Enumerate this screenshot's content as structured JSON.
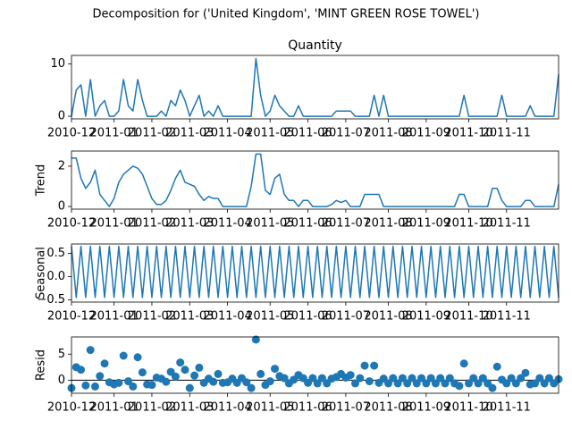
{
  "title": "Decomposition for ('United Kingdom', 'MINT GREEN ROSE TOWEL')",
  "chart_data": [
    {
      "type": "line",
      "title": "Quantity",
      "color": "#1f77b4",
      "categories": [
        "2010-12",
        null,
        null,
        null,
        null,
        null,
        null,
        null,
        null,
        "2011-01",
        null,
        null,
        null,
        null,
        null,
        null,
        null,
        "2011-02",
        null,
        null,
        null,
        null,
        null,
        null,
        null,
        "2011-03",
        null,
        null,
        null,
        null,
        null,
        null,
        null,
        "2011-04",
        null,
        null,
        null,
        null,
        null,
        null,
        null,
        null,
        "2011-05",
        null,
        null,
        null,
        null,
        null,
        null,
        null,
        "2011-06",
        null,
        null,
        null,
        null,
        null,
        null,
        null,
        "2011-07",
        null,
        null,
        null,
        null,
        null,
        null,
        null,
        null,
        "2011-08",
        null,
        null,
        null,
        null,
        null,
        null,
        null,
        "2011-09",
        null,
        null,
        null,
        null,
        null,
        null,
        null,
        null,
        "2011-10",
        null,
        null,
        null,
        null,
        null,
        null,
        null,
        "2011-11",
        null,
        null,
        null,
        null,
        null,
        null,
        null,
        null,
        null,
        null,
        null
      ],
      "values": [
        0,
        5,
        6,
        0,
        7,
        0,
        2,
        3,
        0,
        0,
        1,
        7,
        2,
        1,
        7,
        3,
        0,
        0,
        0,
        1,
        0,
        3,
        2,
        5,
        3,
        0,
        2,
        4,
        0,
        1,
        0,
        2,
        0,
        0,
        0,
        0,
        0,
        0,
        0,
        11,
        4,
        0,
        1,
        4,
        2,
        1,
        0,
        0,
        2,
        0,
        0,
        0,
        0,
        0,
        0,
        0,
        1,
        1,
        1,
        1,
        0,
        0,
        0,
        0,
        4,
        0,
        4,
        0,
        0,
        0,
        0,
        0,
        0,
        0,
        0,
        0,
        0,
        0,
        0,
        0,
        0,
        0,
        0,
        4,
        0,
        0,
        0,
        0,
        0,
        0,
        0,
        4,
        0,
        0,
        0,
        0,
        0,
        2,
        0,
        0,
        0,
        0,
        0,
        8
      ],
      "ylim": [
        -0.5,
        11.6
      ],
      "yticks": [
        0,
        10
      ]
    },
    {
      "type": "line",
      "ylabel": "Trend",
      "color": "#1f77b4",
      "categories": [
        "2010-12",
        null,
        null,
        null,
        null,
        null,
        null,
        null,
        null,
        "2011-01",
        null,
        null,
        null,
        null,
        null,
        null,
        null,
        "2011-02",
        null,
        null,
        null,
        null,
        null,
        null,
        null,
        "2011-03",
        null,
        null,
        null,
        null,
        null,
        null,
        null,
        "2011-04",
        null,
        null,
        null,
        null,
        null,
        null,
        null,
        null,
        "2011-05",
        null,
        null,
        null,
        null,
        null,
        null,
        null,
        "2011-06",
        null,
        null,
        null,
        null,
        null,
        null,
        null,
        "2011-07",
        null,
        null,
        null,
        null,
        null,
        null,
        null,
        null,
        "2011-08",
        null,
        null,
        null,
        null,
        null,
        null,
        null,
        "2011-09",
        null,
        null,
        null,
        null,
        null,
        null,
        null,
        null,
        "2011-10",
        null,
        null,
        null,
        null,
        null,
        null,
        null,
        "2011-11",
        null,
        null,
        null,
        null,
        null,
        null,
        null,
        null,
        null,
        null,
        null
      ],
      "values": [
        2.4,
        2.4,
        1.4,
        0.9,
        1.2,
        1.8,
        0.6,
        0.3,
        0.0,
        0.4,
        1.2,
        1.6,
        1.8,
        2.0,
        1.9,
        1.6,
        1.0,
        0.4,
        0.1,
        0.1,
        0.3,
        0.8,
        1.4,
        1.8,
        1.2,
        1.1,
        1.0,
        0.6,
        0.3,
        0.5,
        0.4,
        0.4,
        0.0,
        0.0,
        0.0,
        0.0,
        0.0,
        0.0,
        1.0,
        2.6,
        2.6,
        0.8,
        0.6,
        1.4,
        1.6,
        0.6,
        0.3,
        0.3,
        0.0,
        0.3,
        0.3,
        0.0,
        0.0,
        0.0,
        0.0,
        0.1,
        0.3,
        0.2,
        0.3,
        0.0,
        0.0,
        0.0,
        0.6,
        0.6,
        0.6,
        0.6,
        0.0,
        0,
        0,
        0,
        0,
        0,
        0,
        0,
        0,
        0,
        0,
        0,
        0,
        0,
        0,
        0,
        0.6,
        0.6,
        0,
        0,
        0,
        0,
        0,
        0.9,
        0.9,
        0.3,
        0,
        0,
        0,
        0,
        0.3,
        0.3,
        0,
        0,
        0,
        0,
        0,
        1.1
      ],
      "ylim": [
        -0.13,
        2.75
      ],
      "yticks": [
        0,
        2
      ]
    },
    {
      "type": "line",
      "ylabel": "Seasonal",
      "color": "#1f77b4",
      "categories": [
        "2010-12",
        null,
        null,
        null,
        null,
        null,
        null,
        null,
        null,
        "2011-01",
        null,
        null,
        null,
        null,
        null,
        null,
        null,
        "2011-02",
        null,
        null,
        null,
        null,
        null,
        null,
        null,
        "2011-03",
        null,
        null,
        null,
        null,
        null,
        null,
        null,
        "2011-04",
        null,
        null,
        null,
        null,
        null,
        null,
        null,
        null,
        "2011-05",
        null,
        null,
        null,
        null,
        null,
        null,
        null,
        "2011-06",
        null,
        null,
        null,
        null,
        null,
        null,
        null,
        "2011-07",
        null,
        null,
        null,
        null,
        null,
        null,
        null,
        null,
        "2011-08",
        null,
        null,
        null,
        null,
        null,
        null,
        null,
        "2011-09",
        null,
        null,
        null,
        null,
        null,
        null,
        null,
        null,
        "2011-10",
        null,
        null,
        null,
        null,
        null,
        null,
        null,
        "2011-11",
        null,
        null,
        null,
        null,
        null,
        null,
        null,
        null,
        null,
        null,
        null
      ],
      "values": [
        0.65,
        -0.45,
        0.65,
        -0.45,
        0.65,
        -0.45,
        0.65,
        -0.45,
        0.65,
        -0.45,
        0.65,
        -0.45,
        0.65,
        -0.45,
        0.65,
        -0.45,
        0.65,
        -0.45,
        0.65,
        -0.45,
        0.65,
        -0.45,
        0.65,
        -0.45,
        0.65,
        -0.45,
        0.65,
        -0.45,
        0.65,
        -0.45,
        0.65,
        -0.45,
        0.65,
        -0.45,
        0.65,
        -0.45,
        0.65,
        -0.45,
        0.65,
        -0.45,
        0.65,
        -0.45,
        0.65,
        -0.45,
        0.65,
        -0.45,
        0.65,
        -0.45,
        0.65,
        -0.45,
        0.65,
        -0.45,
        0.65,
        -0.45,
        0.65,
        -0.45,
        0.65,
        -0.45,
        0.65,
        -0.45,
        0.65,
        -0.45,
        0.65,
        -0.45,
        0.65,
        -0.45,
        0.65,
        -0.45,
        0.65,
        -0.45,
        0.65,
        -0.45,
        0.65,
        -0.45,
        0.65,
        -0.45,
        0.65,
        -0.45,
        0.65,
        -0.45,
        0.65,
        -0.45,
        0.65,
        -0.45,
        0.65,
        -0.45,
        0.65,
        -0.45,
        0.65,
        -0.45,
        0.65,
        -0.45,
        0.65,
        -0.45,
        0.65,
        -0.45,
        0.65,
        -0.45,
        0.65,
        -0.45,
        0.65,
        -0.45,
        0.65,
        -0.45
      ],
      "ylim": [
        -0.55,
        0.7
      ],
      "yticks": [
        {
          "value": -0.5,
          "label": "−0.5"
        },
        {
          "value": 0,
          "label": "0.0"
        },
        0.5
      ]
    },
    {
      "type": "scatter",
      "ylabel": "Resid",
      "color": "#1f77b4",
      "hline": 0,
      "categories": [
        "2010-12",
        null,
        null,
        null,
        null,
        null,
        null,
        null,
        null,
        "2011-01",
        null,
        null,
        null,
        null,
        null,
        null,
        null,
        "2011-02",
        null,
        null,
        null,
        null,
        null,
        null,
        null,
        "2011-03",
        null,
        null,
        null,
        null,
        null,
        null,
        null,
        "2011-04",
        null,
        null,
        null,
        null,
        null,
        null,
        null,
        null,
        "2011-05",
        null,
        null,
        null,
        null,
        null,
        null,
        null,
        "2011-06",
        null,
        null,
        null,
        null,
        null,
        null,
        null,
        "2011-07",
        null,
        null,
        null,
        null,
        null,
        null,
        null,
        null,
        "2011-08",
        null,
        null,
        null,
        null,
        null,
        null,
        null,
        "2011-09",
        null,
        null,
        null,
        null,
        null,
        null,
        null,
        null,
        "2011-10",
        null,
        null,
        null,
        null,
        null,
        null,
        null,
        "2011-11",
        null,
        null,
        null,
        null,
        null,
        null,
        null,
        null,
        null,
        null,
        null
      ],
      "values": [
        -1.5,
        2.5,
        2.0,
        -1.0,
        5.8,
        -1.2,
        0.8,
        3.2,
        -0.4,
        -0.8,
        -0.5,
        4.7,
        -0.2,
        -1.2,
        4.4,
        1.5,
        -0.8,
        -0.9,
        0.5,
        0.3,
        -0.3,
        1.6,
        0.7,
        3.4,
        2.0,
        -1.5,
        0.9,
        2.4,
        -0.5,
        0.3,
        -0.3,
        1.2,
        -0.5,
        -0.4,
        0.3,
        -0.5,
        0.4,
        -0.4,
        -1.5,
        7.8,
        1.2,
        -0.9,
        -0.2,
        2.2,
        0.8,
        0.4,
        -0.6,
        0.1,
        1.0,
        0.4,
        -0.5,
        0.4,
        -0.6,
        0.4,
        -0.6,
        0.3,
        0.6,
        1.2,
        0.5,
        1.0,
        -0.6,
        0.4,
        2.8,
        -0.2,
        2.8,
        -0.5,
        0.3,
        -0.6,
        0.4,
        -0.6,
        0.4,
        -0.6,
        0.4,
        -0.6,
        0.4,
        -0.6,
        0.4,
        -0.6,
        0.4,
        -0.6,
        0.4,
        -0.6,
        -1.1,
        3.2,
        -0.6,
        0.4,
        -0.6,
        0.4,
        -0.6,
        -1.5,
        2.6,
        0.1,
        -0.6,
        0.4,
        -0.6,
        0.4,
        1.4,
        -0.8,
        -0.6,
        0.4,
        -0.6,
        0.4,
        -0.6,
        0.2
      ],
      "ylim": [
        -2.5,
        8.3
      ],
      "yticks": [
        0,
        5
      ]
    }
  ]
}
